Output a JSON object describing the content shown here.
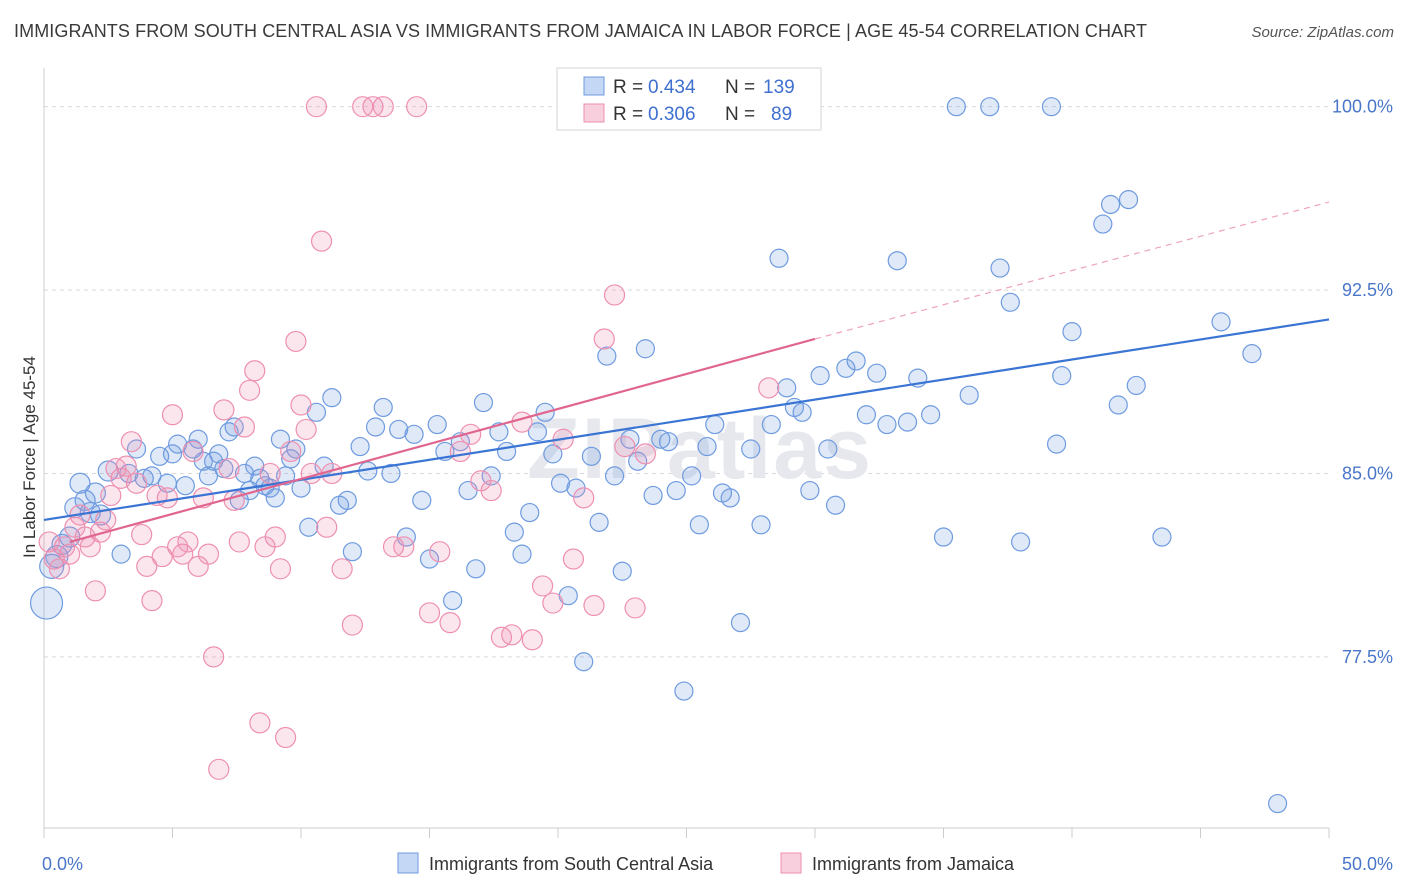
{
  "title": "IMMIGRANTS FROM SOUTH CENTRAL ASIA VS IMMIGRANTS FROM JAMAICA IN LABOR FORCE | AGE 45-54 CORRELATION CHART",
  "source": "Source: ZipAtlas.com",
  "watermark": "ZIPatlas",
  "chart_data": {
    "type": "scatter",
    "ylabel": "In Labor Force | Age 45-54",
    "xlim": [
      0,
      50
    ],
    "ylim": [
      70.5,
      101.5
    ],
    "x_tick_labels": [
      {
        "value": 0,
        "label": "0.0%"
      },
      {
        "value": 50,
        "label": "50.0%"
      }
    ],
    "y_ticks": [
      {
        "value": 77.5,
        "label": "77.5%"
      },
      {
        "value": 85.0,
        "label": "85.0%"
      },
      {
        "value": 92.5,
        "label": "92.5%"
      },
      {
        "value": 100.0,
        "label": "100.0%"
      }
    ],
    "grid": true,
    "legend": {
      "placement": "top-center",
      "rows": [
        {
          "r_label": "R =",
          "r": "0.434",
          "n_label": "N =",
          "n": "139",
          "color": "#6f9be0"
        },
        {
          "r_label": "R =",
          "r": "0.306",
          "n_label": "N =",
          "n": "89",
          "color": "#ee8fb0"
        }
      ]
    },
    "series": [
      {
        "name": "Immigrants from South Central Asia",
        "color": "#6f9be0",
        "trend": {
          "x": [
            0,
            50
          ],
          "y": [
            83.1,
            91.3
          ],
          "dashed_extension": false
        },
        "points": [
          [
            0.1,
            79.7,
            16
          ],
          [
            0.3,
            81.2,
            12
          ],
          [
            0.5,
            81.6,
            11
          ],
          [
            0.7,
            82.1,
            10
          ],
          [
            1.0,
            82.4,
            10
          ],
          [
            1.2,
            83.6,
            10
          ],
          [
            1.4,
            84.6,
            10
          ],
          [
            1.6,
            83.9,
            10
          ],
          [
            1.8,
            83.4,
            10
          ],
          [
            2.0,
            84.2,
            10
          ],
          [
            2.2,
            83.3,
            10
          ],
          [
            2.5,
            85.1,
            10
          ],
          [
            3.0,
            81.7,
            9
          ],
          [
            3.3,
            85.0,
            9
          ],
          [
            3.6,
            86.0,
            9
          ],
          [
            3.9,
            84.8,
            9
          ],
          [
            4.2,
            84.9,
            9
          ],
          [
            4.5,
            85.7,
            9
          ],
          [
            4.8,
            84.6,
            9
          ],
          [
            5.0,
            85.8,
            9
          ],
          [
            5.2,
            86.2,
            9
          ],
          [
            5.5,
            84.5,
            9
          ],
          [
            5.8,
            86.0,
            9
          ],
          [
            6.0,
            86.4,
            9
          ],
          [
            6.2,
            85.5,
            9
          ],
          [
            6.4,
            84.9,
            9
          ],
          [
            6.6,
            85.5,
            9
          ],
          [
            6.8,
            85.8,
            9
          ],
          [
            7.0,
            85.2,
            9
          ],
          [
            7.2,
            86.7,
            9
          ],
          [
            7.4,
            86.9,
            9
          ],
          [
            7.6,
            83.9,
            9
          ],
          [
            7.8,
            85.0,
            9
          ],
          [
            8.0,
            84.3,
            9
          ],
          [
            8.2,
            85.3,
            9
          ],
          [
            8.4,
            84.8,
            9
          ],
          [
            8.6,
            84.5,
            9
          ],
          [
            8.8,
            84.4,
            9
          ],
          [
            9.0,
            84.0,
            9
          ],
          [
            9.2,
            86.4,
            9
          ],
          [
            9.4,
            84.9,
            9
          ],
          [
            9.6,
            85.6,
            9
          ],
          [
            9.8,
            86.0,
            9
          ],
          [
            10.0,
            84.4,
            9
          ],
          [
            10.3,
            82.8,
            9
          ],
          [
            10.6,
            87.5,
            9
          ],
          [
            10.9,
            85.3,
            9
          ],
          [
            11.2,
            88.1,
            9
          ],
          [
            11.5,
            83.7,
            9
          ],
          [
            11.8,
            83.9,
            9
          ],
          [
            12.0,
            81.8,
            9
          ],
          [
            12.3,
            86.1,
            9
          ],
          [
            12.6,
            85.1,
            9
          ],
          [
            12.9,
            86.9,
            9
          ],
          [
            13.2,
            87.7,
            9
          ],
          [
            13.5,
            85.0,
            9
          ],
          [
            13.8,
            86.8,
            9
          ],
          [
            14.1,
            82.4,
            9
          ],
          [
            14.4,
            86.6,
            9
          ],
          [
            14.7,
            83.9,
            9
          ],
          [
            15.0,
            81.5,
            9
          ],
          [
            15.3,
            87.0,
            9
          ],
          [
            15.6,
            85.9,
            9
          ],
          [
            15.9,
            79.8,
            9
          ],
          [
            16.2,
            86.3,
            9
          ],
          [
            16.5,
            84.3,
            9
          ],
          [
            16.8,
            81.1,
            9
          ],
          [
            17.1,
            87.9,
            9
          ],
          [
            17.4,
            84.9,
            9
          ],
          [
            17.7,
            86.7,
            9
          ],
          [
            18.0,
            85.9,
            9
          ],
          [
            18.3,
            82.6,
            9
          ],
          [
            18.6,
            81.7,
            9
          ],
          [
            18.9,
            83.4,
            9
          ],
          [
            19.2,
            86.7,
            9
          ],
          [
            19.5,
            87.5,
            9
          ],
          [
            19.8,
            85.8,
            9
          ],
          [
            20.1,
            84.6,
            9
          ],
          [
            20.4,
            80.0,
            9
          ],
          [
            20.7,
            84.4,
            9
          ],
          [
            21.0,
            77.3,
            9
          ],
          [
            21.3,
            85.7,
            9
          ],
          [
            21.6,
            83.0,
            9
          ],
          [
            21.9,
            89.8,
            9
          ],
          [
            22.2,
            84.9,
            9
          ],
          [
            22.5,
            81.0,
            9
          ],
          [
            22.8,
            86.4,
            9
          ],
          [
            23.1,
            85.5,
            9
          ],
          [
            23.4,
            90.1,
            9
          ],
          [
            23.7,
            84.1,
            9
          ],
          [
            24.0,
            86.4,
            9
          ],
          [
            24.3,
            86.3,
            9
          ],
          [
            24.6,
            84.3,
            9
          ],
          [
            24.9,
            76.1,
            9
          ],
          [
            25.2,
            84.9,
            9
          ],
          [
            25.5,
            82.9,
            9
          ],
          [
            25.8,
            86.1,
            9
          ],
          [
            26.1,
            87.0,
            9
          ],
          [
            26.4,
            84.2,
            9
          ],
          [
            26.7,
            84.0,
            9
          ],
          [
            27.1,
            78.9,
            9
          ],
          [
            27.5,
            86.0,
            9
          ],
          [
            27.9,
            82.9,
            9
          ],
          [
            28.3,
            87.0,
            9
          ],
          [
            28.6,
            93.8,
            9
          ],
          [
            28.9,
            88.5,
            9
          ],
          [
            29.2,
            87.7,
            9
          ],
          [
            29.5,
            87.5,
            9
          ],
          [
            29.8,
            84.3,
            9
          ],
          [
            30.2,
            89.0,
            9
          ],
          [
            30.5,
            86.0,
            9
          ],
          [
            30.8,
            83.7,
            9
          ],
          [
            31.2,
            89.3,
            9
          ],
          [
            31.6,
            89.6,
            9
          ],
          [
            32.0,
            87.4,
            9
          ],
          [
            32.4,
            89.1,
            9
          ],
          [
            32.8,
            87.0,
            9
          ],
          [
            33.2,
            93.7,
            9
          ],
          [
            33.6,
            87.1,
            9
          ],
          [
            34.0,
            88.9,
            9
          ],
          [
            34.5,
            87.4,
            9
          ],
          [
            35.0,
            82.4,
            9
          ],
          [
            35.5,
            100.0,
            9
          ],
          [
            36.0,
            88.2,
            9
          ],
          [
            36.8,
            100.0,
            9
          ],
          [
            37.2,
            93.4,
            9
          ],
          [
            37.6,
            92.0,
            9
          ],
          [
            38.0,
            82.2,
            9
          ],
          [
            39.2,
            100.0,
            9
          ],
          [
            39.4,
            86.2,
            9
          ],
          [
            39.6,
            89.0,
            9
          ],
          [
            40.0,
            90.8,
            9
          ],
          [
            41.2,
            95.2,
            9
          ],
          [
            41.5,
            96.0,
            9
          ],
          [
            41.8,
            87.8,
            9
          ],
          [
            42.2,
            96.2,
            9
          ],
          [
            42.5,
            88.6,
            9
          ],
          [
            43.5,
            82.4,
            9
          ],
          [
            45.8,
            91.2,
            9
          ],
          [
            47.0,
            89.9,
            9
          ],
          [
            48.0,
            71.5,
            9
          ]
        ]
      },
      {
        "name": "Immigrants from Jamaica",
        "color": "#ee8fb0",
        "trend": {
          "x": [
            1,
            30
          ],
          "y": [
            82.2,
            90.5
          ],
          "dashed_extension": true,
          "dashed_to": [
            50,
            96.1
          ]
        },
        "points": [
          [
            0.2,
            82.2,
            10
          ],
          [
            0.4,
            81.5,
            10
          ],
          [
            0.6,
            81.1,
            10
          ],
          [
            0.8,
            82.0,
            10
          ],
          [
            1.0,
            81.7,
            10
          ],
          [
            1.2,
            82.8,
            10
          ],
          [
            1.4,
            83.3,
            10
          ],
          [
            1.6,
            82.4,
            10
          ],
          [
            1.8,
            82.0,
            10
          ],
          [
            2.0,
            80.2,
            10
          ],
          [
            2.2,
            82.6,
            10
          ],
          [
            2.4,
            83.1,
            10
          ],
          [
            2.6,
            84.1,
            10
          ],
          [
            2.8,
            85.2,
            10
          ],
          [
            3.0,
            84.8,
            10
          ],
          [
            3.2,
            85.3,
            10
          ],
          [
            3.4,
            86.3,
            10
          ],
          [
            3.6,
            84.6,
            10
          ],
          [
            3.8,
            82.5,
            10
          ],
          [
            4.0,
            81.2,
            10
          ],
          [
            4.2,
            79.8,
            10
          ],
          [
            4.4,
            84.1,
            10
          ],
          [
            4.6,
            81.6,
            10
          ],
          [
            4.8,
            84.0,
            10
          ],
          [
            5.0,
            87.4,
            10
          ],
          [
            5.2,
            82.0,
            10
          ],
          [
            5.4,
            81.7,
            10
          ],
          [
            5.6,
            82.2,
            10
          ],
          [
            5.8,
            85.9,
            10
          ],
          [
            6.0,
            81.2,
            10
          ],
          [
            6.2,
            84.0,
            10
          ],
          [
            6.4,
            81.7,
            10
          ],
          [
            6.6,
            77.5,
            10
          ],
          [
            6.8,
            72.9,
            10
          ],
          [
            7.0,
            87.6,
            10
          ],
          [
            7.2,
            85.2,
            10
          ],
          [
            7.4,
            83.9,
            10
          ],
          [
            7.6,
            82.2,
            10
          ],
          [
            7.8,
            86.9,
            10
          ],
          [
            8.0,
            88.4,
            10
          ],
          [
            8.2,
            89.2,
            10
          ],
          [
            8.4,
            74.8,
            10
          ],
          [
            8.6,
            82.0,
            10
          ],
          [
            8.8,
            85.0,
            10
          ],
          [
            9.0,
            82.4,
            10
          ],
          [
            9.2,
            81.1,
            10
          ],
          [
            9.4,
            74.2,
            10
          ],
          [
            9.6,
            85.9,
            10
          ],
          [
            9.8,
            90.4,
            10
          ],
          [
            10.0,
            87.8,
            10
          ],
          [
            10.2,
            86.8,
            10
          ],
          [
            10.4,
            85.0,
            10
          ],
          [
            10.6,
            100.0,
            10
          ],
          [
            10.8,
            94.5,
            10
          ],
          [
            11.0,
            82.8,
            10
          ],
          [
            11.2,
            85.0,
            10
          ],
          [
            11.6,
            81.1,
            10
          ],
          [
            12.0,
            78.8,
            10
          ],
          [
            12.4,
            100.0,
            10
          ],
          [
            12.8,
            100.0,
            10
          ],
          [
            13.2,
            100.0,
            10
          ],
          [
            13.6,
            82.0,
            10
          ],
          [
            14.0,
            82.0,
            10
          ],
          [
            14.5,
            100.0,
            10
          ],
          [
            15.0,
            79.3,
            10
          ],
          [
            15.4,
            81.8,
            10
          ],
          [
            15.8,
            78.9,
            10
          ],
          [
            16.2,
            85.9,
            10
          ],
          [
            16.6,
            86.6,
            10
          ],
          [
            17.0,
            84.7,
            10
          ],
          [
            17.4,
            84.3,
            10
          ],
          [
            17.8,
            78.3,
            10
          ],
          [
            18.2,
            78.4,
            10
          ],
          [
            18.6,
            87.1,
            10
          ],
          [
            19.0,
            78.2,
            10
          ],
          [
            19.4,
            80.4,
            10
          ],
          [
            19.8,
            79.7,
            10
          ],
          [
            20.2,
            86.4,
            10
          ],
          [
            20.6,
            81.5,
            10
          ],
          [
            21.0,
            84.0,
            10
          ],
          [
            21.4,
            79.6,
            10
          ],
          [
            21.8,
            90.5,
            10
          ],
          [
            22.2,
            92.3,
            10
          ],
          [
            22.6,
            86.1,
            10
          ],
          [
            23.0,
            79.5,
            10
          ],
          [
            23.4,
            85.8,
            10
          ],
          [
            24.0,
            100.0,
            10
          ],
          [
            27.6,
            100.0,
            10
          ],
          [
            28.2,
            88.5,
            10
          ]
        ]
      }
    ]
  },
  "bottom_legend": [
    {
      "label": "Immigrants from South Central Asia",
      "color": "#6f9be0"
    },
    {
      "label": "Immigrants from Jamaica",
      "color": "#ee8fb0"
    }
  ]
}
